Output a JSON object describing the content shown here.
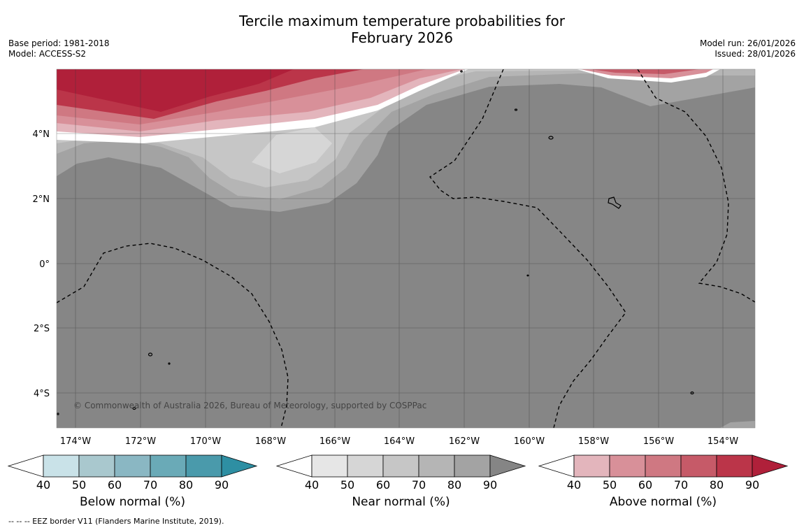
{
  "header": {
    "title_line1": "Tercile maximum temperature probabilities for",
    "title_line2": "February 2026",
    "base_period": "Base period: 1981-2018",
    "model": "Model: ACCESS-S2",
    "model_run": "Model run: 26/01/2026",
    "issued": "Issued: 28/01/2026"
  },
  "map": {
    "lon_labels": [
      "174°W",
      "172°W",
      "170°W",
      "168°W",
      "166°W",
      "164°W",
      "162°W",
      "160°W",
      "158°W",
      "156°W",
      "154°W"
    ],
    "lat_labels": [
      "4°N",
      "2°N",
      "0°",
      "2°S",
      "4°S"
    ],
    "copyright": "© Commonwealth of Australia 2026, Bureau of Meteorology, supported by COSPPac"
  },
  "colorbars": [
    {
      "title": "Below normal (%)",
      "ticks": [
        "40",
        "50",
        "60",
        "70",
        "80",
        "90"
      ],
      "colors": [
        "#ffffff",
        "#c9e2e8",
        "#a9c8ce",
        "#8ab7c3",
        "#6aaab7",
        "#4a9aab",
        "#2e8fa3"
      ]
    },
    {
      "title": "Near normal (%)",
      "ticks": [
        "40",
        "50",
        "60",
        "70",
        "80",
        "90"
      ],
      "colors": [
        "#ffffff",
        "#e6e6e6",
        "#d6d6d6",
        "#c6c6c6",
        "#b5b5b5",
        "#a3a3a3",
        "#858585"
      ]
    },
    {
      "title": "Above normal (%)",
      "ticks": [
        "40",
        "50",
        "60",
        "70",
        "80",
        "90"
      ],
      "colors": [
        "#ffffff",
        "#e3b5bc",
        "#d89099",
        "#cf7882",
        "#c65a68",
        "#bb3549",
        "#b0203a"
      ]
    }
  ],
  "footnote": "--  --  -- EEZ border V11 (Flanders Marine Institute, 2019)."
}
